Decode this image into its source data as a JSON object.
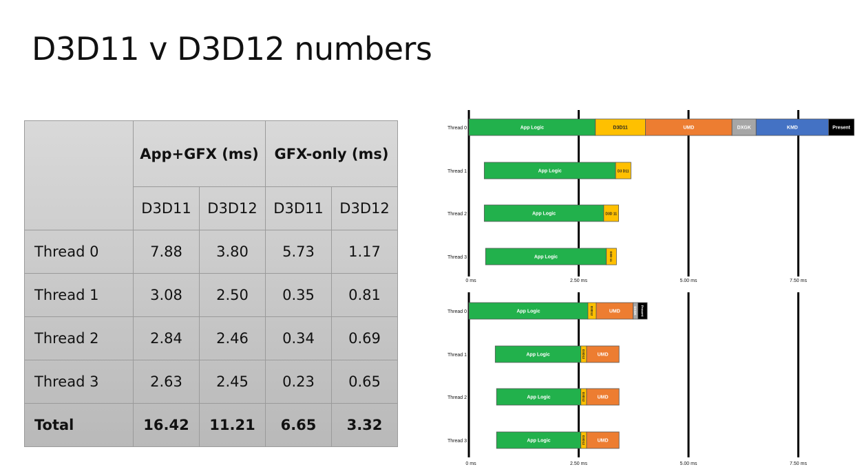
{
  "slide": {
    "title": "D3D11 v D3D12 numbers"
  },
  "table": {
    "group_headers": [
      "App+GFX (ms)",
      "GFX-only (ms)"
    ],
    "sub_headers": [
      "D3D11",
      "D3D12",
      "D3D11",
      "D3D12"
    ],
    "rows": [
      {
        "label": "Thread 0",
        "values": [
          "7.88",
          "3.80",
          "5.73",
          "1.17"
        ]
      },
      {
        "label": "Thread 1",
        "values": [
          "3.08",
          "2.50",
          "0.35",
          "0.81"
        ]
      },
      {
        "label": "Thread 2",
        "values": [
          "2.84",
          "2.46",
          "0.34",
          "0.69"
        ]
      },
      {
        "label": "Thread 3",
        "values": [
          "2.63",
          "2.45",
          "0.23",
          "0.65"
        ]
      }
    ],
    "total": {
      "label": "Total",
      "values": [
        "16.42",
        "11.21",
        "6.65",
        "3.32"
      ]
    }
  },
  "chart_data": [
    {
      "type": "bar",
      "orientation": "horizontal-stacked-timeline",
      "x_unit": "ms",
      "xlim": [
        0,
        8.6
      ],
      "ticks": [
        {
          "value": 0,
          "label": "0 ms"
        },
        {
          "value": 2.5,
          "label": "2.50 ms"
        },
        {
          "value": 5.0,
          "label": "5.00 ms"
        },
        {
          "value": 7.5,
          "label": "7.50 ms"
        }
      ],
      "threads": [
        {
          "name": "Thread 0",
          "segments": [
            {
              "label": "App Logic",
              "start": 0.0,
              "end": 2.88,
              "color": "#22b14c"
            },
            {
              "label": "D3D11",
              "start": 2.88,
              "end": 4.02,
              "color": "#ffc000"
            },
            {
              "label": "UMD",
              "start": 4.02,
              "end": 5.99,
              "color": "#ed7d31"
            },
            {
              "label": "DXGK",
              "start": 5.99,
              "end": 6.54,
              "color": "#a6a6a6"
            },
            {
              "label": "KMD",
              "start": 6.54,
              "end": 8.19,
              "color": "#4472c4"
            },
            {
              "label": "Present",
              "start": 8.19,
              "end": 8.77,
              "color": "#000000"
            }
          ]
        },
        {
          "name": "Thread 1",
          "segments": [
            {
              "label": "App Logic",
              "start": 0.35,
              "end": 3.34,
              "color": "#22b14c"
            },
            {
              "label": "D3 D11",
              "start": 3.34,
              "end": 3.69,
              "color": "#ffc000"
            }
          ]
        },
        {
          "name": "Thread 2",
          "segments": [
            {
              "label": "App Logic",
              "start": 0.35,
              "end": 3.07,
              "color": "#22b14c"
            },
            {
              "label": "D3D 11",
              "start": 3.07,
              "end": 3.41,
              "color": "#ffc000"
            }
          ]
        },
        {
          "name": "Thread 3",
          "segments": [
            {
              "label": "App Logic",
              "start": 0.38,
              "end": 3.13,
              "color": "#22b14c"
            },
            {
              "label": "D3D 11",
              "start": 3.13,
              "end": 3.36,
              "color": "#ffc000"
            }
          ]
        }
      ]
    },
    {
      "type": "bar",
      "orientation": "horizontal-stacked-timeline",
      "x_unit": "ms",
      "xlim": [
        0,
        8.6
      ],
      "ticks": [
        {
          "value": 0,
          "label": "0 ms"
        },
        {
          "value": 2.5,
          "label": "2.50 ms"
        },
        {
          "value": 5.0,
          "label": "5.00 ms"
        },
        {
          "value": 7.5,
          "label": "7.50 ms"
        }
      ],
      "threads": [
        {
          "name": "Thread 0",
          "segments": [
            {
              "label": "App Logic",
              "start": 0.0,
              "end": 2.71,
              "color": "#22b14c"
            },
            {
              "label": "D3D12",
              "start": 2.71,
              "end": 2.9,
              "color": "#ffc000"
            },
            {
              "label": "UMD",
              "start": 2.9,
              "end": 3.74,
              "color": "#ed7d31"
            },
            {
              "label": "DXGK",
              "start": 3.74,
              "end": 3.85,
              "color": "#a6a6a6"
            },
            {
              "label": "Present",
              "start": 3.85,
              "end": 4.06,
              "color": "#000000"
            }
          ]
        },
        {
          "name": "Thread 1",
          "segments": [
            {
              "label": "App Logic",
              "start": 0.6,
              "end": 2.55,
              "color": "#22b14c"
            },
            {
              "label": "D3D12",
              "start": 2.55,
              "end": 2.68,
              "color": "#ffc000"
            },
            {
              "label": "UMD",
              "start": 2.68,
              "end": 3.42,
              "color": "#ed7d31"
            }
          ]
        },
        {
          "name": "Thread 2",
          "segments": [
            {
              "label": "App Logic",
              "start": 0.63,
              "end": 2.55,
              "color": "#22b14c"
            },
            {
              "label": "D3D12",
              "start": 2.55,
              "end": 2.68,
              "color": "#ffc000"
            },
            {
              "label": "UMD",
              "start": 2.68,
              "end": 3.42,
              "color": "#ed7d31"
            }
          ]
        },
        {
          "name": "Thread 3",
          "segments": [
            {
              "label": "App Logic",
              "start": 0.63,
              "end": 2.55,
              "color": "#22b14c"
            },
            {
              "label": "D3D12",
              "start": 2.55,
              "end": 2.68,
              "color": "#ffc000"
            },
            {
              "label": "UMD",
              "start": 2.68,
              "end": 3.42,
              "color": "#ed7d31"
            }
          ]
        }
      ]
    }
  ]
}
